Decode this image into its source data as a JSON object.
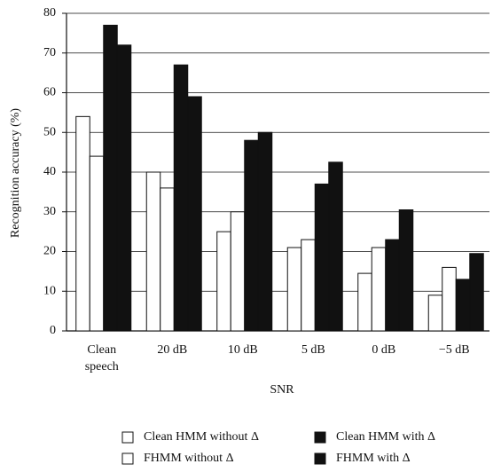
{
  "chart_data": {
    "type": "bar",
    "x_label": "SNR",
    "y_label": "Recognition accuracy (%)",
    "categories": [
      "Clean speech",
      "20 dB",
      "10 dB",
      "5 dB",
      "0 dB",
      "−5 dB"
    ],
    "series": [
      {
        "name": "Clean HMM without Δ",
        "color": "#ffffff",
        "values": [
          54,
          40,
          25,
          21,
          14.5,
          9
        ]
      },
      {
        "name": "FHMM without Δ",
        "color": "#ffffff",
        "values": [
          44,
          36,
          30,
          23,
          21,
          16
        ]
      },
      {
        "name": "Clean HMM with Δ",
        "color": "#111111",
        "values": [
          77,
          67,
          48,
          37,
          23,
          13
        ]
      },
      {
        "name": "FHMM with Δ",
        "color": "#111111",
        "values": [
          72,
          59,
          50,
          42.5,
          30.5,
          19.5
        ]
      }
    ],
    "ylim": [
      0,
      80
    ],
    "yticks": [
      0,
      10,
      20,
      30,
      40,
      50,
      60,
      70,
      80
    ],
    "grid": true,
    "legend": "bottom"
  }
}
